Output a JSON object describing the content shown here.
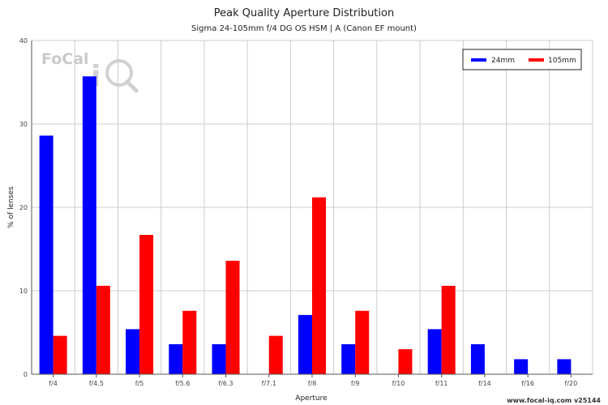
{
  "chart_data": {
    "type": "bar",
    "title": "Peak Quality Aperture Distribution",
    "subtitle": "Sigma 24-105mm f/4 DG OS HSM | A (Canon EF mount)",
    "xlabel": "Aperture",
    "ylabel": "% of lenses",
    "ylim": [
      0,
      40
    ],
    "yticks": [
      0,
      10,
      20,
      30,
      40
    ],
    "grid": true,
    "legend_position": "top-right",
    "categories": [
      "f/4",
      "f/4.5",
      "f/5",
      "f/5.6",
      "f/6.3",
      "f/7.1",
      "f/8",
      "f/9",
      "f/10",
      "f/11",
      "f/14",
      "f/16",
      "f/20"
    ],
    "series": [
      {
        "name": "24mm",
        "color": "#0000ff",
        "values": [
          28.6,
          35.7,
          5.4,
          3.6,
          3.6,
          0,
          7.1,
          3.6,
          0,
          5.4,
          3.6,
          1.8,
          1.8
        ]
      },
      {
        "name": "105mm",
        "color": "#ff0000",
        "values": [
          4.6,
          10.6,
          16.7,
          7.6,
          13.6,
          4.6,
          21.2,
          7.6,
          3.0,
          10.6,
          0,
          0,
          0
        ]
      }
    ]
  },
  "watermark": {
    "logo_text": "FoCal iq",
    "footer": "www.focal-iq.com  v25144"
  }
}
